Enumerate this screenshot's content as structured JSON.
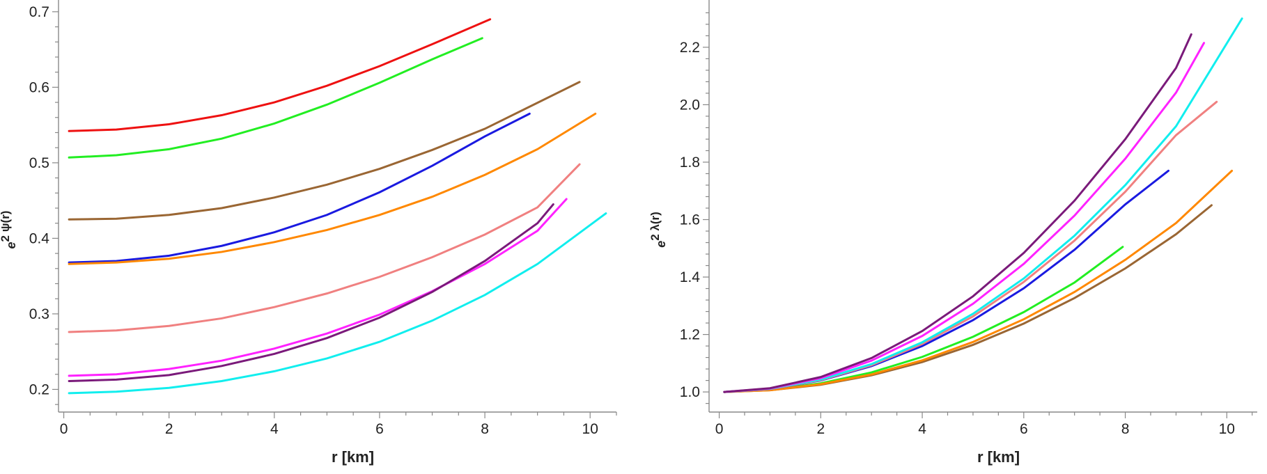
{
  "chart_data": [
    {
      "type": "line",
      "xlabel": "r [km]",
      "ylabel_base": "e",
      "ylabel_exp": "2 ψ(r)",
      "xlim": [
        -0.1,
        10.5
      ],
      "ylim": [
        0.17,
        0.71
      ],
      "xticks": [
        0,
        2,
        4,
        6,
        8,
        10
      ],
      "yticks": [
        0.2,
        0.3,
        0.4,
        0.5,
        0.6,
        0.7
      ],
      "ytick_labels": [
        "0.2",
        "0.3",
        "0.4",
        "0.5",
        "0.6",
        "0.7"
      ],
      "grid": false,
      "series": [
        {
          "color": "#ee1111",
          "x": [
            0.1,
            1,
            2,
            3,
            4,
            5,
            6,
            7,
            8.1
          ],
          "y": [
            0.542,
            0.544,
            0.551,
            0.563,
            0.58,
            0.602,
            0.628,
            0.657,
            0.69
          ]
        },
        {
          "color": "#22ee22",
          "x": [
            0.1,
            1,
            2,
            3,
            4,
            5,
            6,
            7,
            7.95
          ],
          "y": [
            0.507,
            0.51,
            0.518,
            0.532,
            0.552,
            0.577,
            0.606,
            0.637,
            0.665
          ]
        },
        {
          "color": "#9a6633",
          "x": [
            0.1,
            1,
            2,
            3,
            4,
            5,
            6,
            7,
            8,
            9.8
          ],
          "y": [
            0.425,
            0.426,
            0.431,
            0.44,
            0.454,
            0.471,
            0.492,
            0.517,
            0.545,
            0.607
          ]
        },
        {
          "color": "#1a1ae0",
          "x": [
            0.1,
            1,
            2,
            3,
            4,
            5,
            6,
            7,
            8,
            8.85
          ],
          "y": [
            0.368,
            0.37,
            0.377,
            0.39,
            0.408,
            0.431,
            0.461,
            0.496,
            0.535,
            0.565
          ]
        },
        {
          "color": "#ff8800",
          "x": [
            0.1,
            1,
            2,
            3,
            4,
            5,
            6,
            7,
            8,
            9,
            10.1
          ],
          "y": [
            0.366,
            0.368,
            0.373,
            0.382,
            0.395,
            0.411,
            0.431,
            0.455,
            0.484,
            0.518,
            0.565
          ]
        },
        {
          "color": "#f08080",
          "x": [
            0.1,
            1,
            2,
            3,
            4,
            5,
            6,
            7,
            8,
            9,
            9.8
          ],
          "y": [
            0.276,
            0.278,
            0.284,
            0.294,
            0.309,
            0.327,
            0.349,
            0.375,
            0.405,
            0.441,
            0.498
          ]
        },
        {
          "color": "#ff22ff",
          "x": [
            0.1,
            1,
            2,
            3,
            4,
            5,
            6,
            7,
            8,
            9,
            9.55
          ],
          "y": [
            0.218,
            0.22,
            0.227,
            0.238,
            0.254,
            0.274,
            0.299,
            0.33,
            0.366,
            0.41,
            0.452
          ]
        },
        {
          "color": "#7a1a7a",
          "x": [
            0.1,
            1,
            2,
            3,
            4,
            5,
            6,
            7,
            8,
            9,
            9.3
          ],
          "y": [
            0.211,
            0.213,
            0.219,
            0.231,
            0.247,
            0.268,
            0.295,
            0.329,
            0.37,
            0.42,
            0.445
          ]
        },
        {
          "color": "#11eeee",
          "x": [
            0.1,
            1,
            2,
            3,
            4,
            5,
            6,
            7,
            8,
            9,
            10.3
          ],
          "y": [
            0.195,
            0.197,
            0.202,
            0.211,
            0.224,
            0.241,
            0.263,
            0.291,
            0.325,
            0.366,
            0.433
          ]
        }
      ]
    },
    {
      "type": "line",
      "xlabel": "r [km]",
      "ylabel_base": "e",
      "ylabel_exp": "2 λ(r)",
      "xlim": [
        -0.2,
        10.6
      ],
      "ylim": [
        0.93,
        2.35
      ],
      "xticks": [
        0,
        2,
        4,
        6,
        8,
        10
      ],
      "yticks": [
        1.0,
        1.2,
        1.4,
        1.6,
        1.8,
        2.0,
        2.2
      ],
      "ytick_labels": [
        "1.0",
        "1.2",
        "1.4",
        "1.6",
        "1.8",
        "2.0",
        "2.2"
      ],
      "grid": false,
      "series": [
        {
          "color": "#22ee22",
          "x": [
            0.1,
            1,
            2,
            3,
            4,
            5,
            6,
            7,
            7.95
          ],
          "y": [
            1.0,
            1.007,
            1.03,
            1.068,
            1.122,
            1.192,
            1.278,
            1.381,
            1.505
          ]
        },
        {
          "color": "#9a6633",
          "x": [
            0.1,
            1,
            2,
            3,
            4,
            5,
            6,
            7,
            8,
            9,
            9.7
          ],
          "y": [
            1.0,
            1.006,
            1.025,
            1.058,
            1.104,
            1.164,
            1.238,
            1.327,
            1.43,
            1.549,
            1.65
          ]
        },
        {
          "color": "#ff8800",
          "x": [
            0.1,
            1,
            2,
            3,
            4,
            5,
            6,
            7,
            8,
            9,
            10.1
          ],
          "y": [
            1.0,
            1.006,
            1.027,
            1.061,
            1.11,
            1.174,
            1.253,
            1.348,
            1.46,
            1.588,
            1.77
          ]
        },
        {
          "color": "#1a1ae0",
          "x": [
            0.1,
            1,
            2,
            3,
            4,
            5,
            6,
            7,
            8,
            8.85
          ],
          "y": [
            1.0,
            1.01,
            1.04,
            1.09,
            1.16,
            1.25,
            1.361,
            1.495,
            1.653,
            1.77
          ]
        },
        {
          "color": "#f08080",
          "x": [
            0.1,
            1,
            2,
            3,
            4,
            5,
            6,
            7,
            8,
            9,
            9.8
          ],
          "y": [
            1.0,
            1.01,
            1.041,
            1.093,
            1.167,
            1.263,
            1.383,
            1.527,
            1.697,
            1.894,
            2.01
          ]
        },
        {
          "color": "#11eeee",
          "x": [
            0.1,
            1,
            2,
            3,
            4,
            5,
            6,
            7,
            8,
            9,
            10.3
          ],
          "y": [
            1.0,
            1.011,
            1.043,
            1.097,
            1.173,
            1.272,
            1.395,
            1.544,
            1.72,
            1.925,
            2.3
          ]
        },
        {
          "color": "#ff22ff",
          "x": [
            0.1,
            1,
            2,
            3,
            4,
            5,
            6,
            7,
            8,
            9,
            9.55
          ],
          "y": [
            1.0,
            1.012,
            1.048,
            1.109,
            1.195,
            1.307,
            1.446,
            1.614,
            1.812,
            2.042,
            2.215
          ]
        },
        {
          "color": "#7a1a7a",
          "x": [
            0.1,
            1,
            2,
            3,
            4,
            5,
            6,
            7,
            8,
            9,
            9.3
          ],
          "y": [
            1.0,
            1.013,
            1.052,
            1.118,
            1.212,
            1.333,
            1.484,
            1.666,
            1.88,
            2.128,
            2.245
          ]
        }
      ]
    }
  ]
}
